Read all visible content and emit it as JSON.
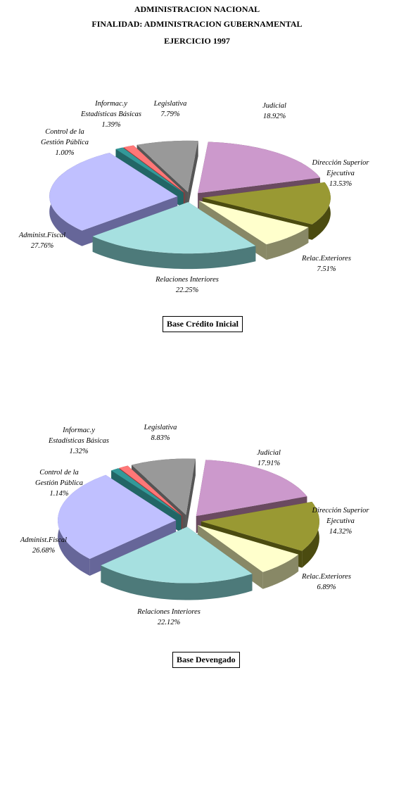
{
  "header": {
    "line1": "ADMINISTRACION NACIONAL",
    "line2": "FINALIDAD: ADMINISTRACION GUBERNAMENTAL",
    "line3": "EJERCICIO 1997"
  },
  "colors": {
    "Judicial": "#cc99cc",
    "Dirección Superior Ejecutiva": "#999933",
    "Relac.Exteriores": "#ffffcc",
    "Relaciones Interiores": "#a6e0e0",
    "Administ.Fiscal": "#c0c0ff",
    "Control de la Gestión Pública": "#339999",
    "Control de la Gestión Pública (2)": "#66ffff",
    "Informac.y Estadísticas Básicas": "#ff7777",
    "Legislativa": "#999999"
  },
  "chart_data": [
    {
      "type": "pie",
      "subtitle": "Base Crédito Inicial",
      "slices": [
        {
          "name": "Judicial",
          "value": 18.92,
          "label": [
            "Judicial",
            "18.92%"
          ]
        },
        {
          "name": "Dirección Superior Ejecutiva",
          "value": 13.53,
          "label": [
            "Dirección Superior",
            "Ejecutiva",
            "13.53%"
          ]
        },
        {
          "name": "Relac.Exteriores",
          "value": 7.51,
          "label": [
            "Relac.Exteriores",
            "7.51%"
          ]
        },
        {
          "name": "Relaciones Interiores",
          "value": 22.25,
          "label": [
            "Relaciones Interiores",
            "22.25%"
          ]
        },
        {
          "name": "Administ.Fiscal",
          "value": 27.76,
          "label": [
            "Administ.Fiscal",
            "27.76%"
          ]
        },
        {
          "name": "Control de la Gestión Pública",
          "value": 1.0,
          "label": [
            "Control de la",
            "Gestión Pública",
            "1.00%"
          ]
        },
        {
          "name": "Informac.y Estadísticas Básicas",
          "value": 1.39,
          "label": [
            "Informac.y",
            "Estadísticas Básicas",
            "1.39%"
          ]
        },
        {
          "name": "Legislativa",
          "value": 7.79,
          "label": [
            "Legislativa",
            "7.79%"
          ]
        }
      ]
    },
    {
      "type": "pie",
      "subtitle": "Base Devengado",
      "slices": [
        {
          "name": "Judicial",
          "value": 17.91,
          "label": [
            "Judicial",
            "17.91%"
          ]
        },
        {
          "name": "Dirección Superior Ejecutiva",
          "value": 14.32,
          "label": [
            "Dirección Superior",
            "Ejecutiva",
            "14.32%"
          ]
        },
        {
          "name": "Relac.Exteriores",
          "value": 6.89,
          "label": [
            "Relac.Exteriores",
            "6.89%"
          ]
        },
        {
          "name": "Relaciones Interiores",
          "value": 22.12,
          "label": [
            "Relaciones Interiores",
            "22.12%"
          ]
        },
        {
          "name": "Administ.Fiscal",
          "value": 26.68,
          "label": [
            "Administ.Fiscal",
            "26.68%"
          ]
        },
        {
          "name": "Control de la Gestión Pública",
          "value": 1.14,
          "label": [
            "Control de la",
            "Gestión Pública",
            "1.14%"
          ]
        },
        {
          "name": "Informac.y Estadísticas Básicas",
          "value": 1.32,
          "label": [
            "Informac.y",
            "Estadísticas Básicas",
            "1.32%"
          ]
        },
        {
          "name": "Legislativa",
          "value": 8.83,
          "label": [
            "Legislativa",
            "8.83%"
          ]
        }
      ]
    }
  ]
}
